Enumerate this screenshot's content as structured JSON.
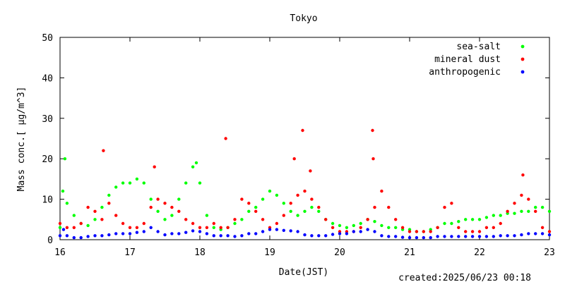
{
  "chart_data": {
    "type": "scatter",
    "title": "Tokyo",
    "xlabel": "Date(JST)",
    "ylabel": "Mass conc.[ μg/m^3]",
    "xlim": [
      16,
      23
    ],
    "ylim": [
      0,
      50
    ],
    "x_ticks": [
      "16",
      "17",
      "18",
      "19",
      "20",
      "21",
      "22",
      "23"
    ],
    "y_ticks": [
      "0",
      "10",
      "20",
      "30",
      "40",
      "50"
    ],
    "legend_position": "top-right",
    "grid": false,
    "series": [
      {
        "name": "sea-salt",
        "color": "#00ff00",
        "x": [
          16.0,
          16.04,
          16.07,
          16.1,
          16.2,
          16.3,
          16.4,
          16.5,
          16.6,
          16.7,
          16.8,
          16.9,
          17.0,
          17.1,
          17.2,
          17.3,
          17.4,
          17.5,
          17.6,
          17.7,
          17.8,
          17.9,
          17.95,
          18.0,
          18.1,
          18.2,
          18.3,
          18.4,
          18.5,
          18.6,
          18.7,
          18.8,
          18.9,
          19.0,
          19.1,
          19.2,
          19.3,
          19.4,
          19.5,
          19.6,
          19.7,
          19.8,
          19.9,
          20.0,
          20.1,
          20.2,
          20.3,
          20.4,
          20.5,
          20.6,
          20.7,
          20.8,
          20.9,
          21.0,
          21.1,
          21.2,
          21.3,
          21.4,
          21.5,
          21.6,
          21.7,
          21.8,
          21.9,
          22.0,
          22.1,
          22.2,
          22.3,
          22.4,
          22.5,
          22.6,
          22.7,
          22.8,
          22.9,
          23.0
        ],
        "y": [
          3,
          12,
          20,
          9,
          6,
          4,
          3.5,
          5,
          8,
          11,
          13,
          14,
          14,
          15,
          14,
          10,
          7,
          5,
          6,
          10,
          14,
          18,
          19,
          14,
          6,
          3,
          2.5,
          3,
          4,
          5,
          7,
          8,
          10,
          12,
          11,
          9,
          7,
          6,
          7,
          8,
          7,
          5,
          4,
          3.5,
          3,
          3.5,
          4,
          5,
          4.5,
          3.5,
          3,
          3,
          2.5,
          2.5,
          2,
          2,
          2.5,
          3,
          4,
          4,
          4.5,
          5,
          5,
          5,
          5.5,
          6,
          6,
          6.5,
          6.5,
          7,
          7,
          8,
          8,
          7
        ]
      },
      {
        "name": "mineral dust",
        "color": "#ff0000",
        "x": [
          16.0,
          16.1,
          16.2,
          16.3,
          16.4,
          16.5,
          16.6,
          16.62,
          16.7,
          16.8,
          16.9,
          17.0,
          17.1,
          17.2,
          17.3,
          17.35,
          17.4,
          17.5,
          17.6,
          17.7,
          17.8,
          17.9,
          18.0,
          18.1,
          18.2,
          18.3,
          18.37,
          18.4,
          18.5,
          18.6,
          18.7,
          18.8,
          18.9,
          19.0,
          19.1,
          19.2,
          19.3,
          19.35,
          19.4,
          19.47,
          19.5,
          19.58,
          19.6,
          19.7,
          19.8,
          19.9,
          20.0,
          20.1,
          20.2,
          20.3,
          20.4,
          20.47,
          20.48,
          20.5,
          20.6,
          20.7,
          20.8,
          20.9,
          21.0,
          21.1,
          21.2,
          21.3,
          21.4,
          21.5,
          21.6,
          21.7,
          21.8,
          21.9,
          22.0,
          22.1,
          22.2,
          22.3,
          22.4,
          22.5,
          22.6,
          22.62,
          22.7,
          22.8,
          22.9,
          23.0
        ],
        "y": [
          4,
          3,
          3,
          4,
          8,
          7,
          5,
          22,
          9,
          6,
          4,
          3,
          3,
          4,
          8,
          18,
          10,
          9,
          8,
          7,
          5,
          4,
          3,
          3,
          4,
          3,
          25,
          3,
          5,
          10,
          9,
          7,
          5,
          3,
          4,
          6,
          9,
          20,
          11,
          27,
          12,
          17,
          10,
          8,
          5,
          3,
          2,
          2,
          2,
          3,
          5,
          27,
          20,
          8,
          12,
          8,
          5,
          3,
          2,
          2,
          2,
          2,
          3,
          8,
          9,
          3,
          2,
          2,
          2,
          3,
          3,
          4,
          7,
          9,
          11,
          16,
          10,
          7,
          3,
          2
        ]
      },
      {
        "name": "anthropogenic",
        "color": "#0000ff",
        "x": [
          16.0,
          16.05,
          16.1,
          16.2,
          16.3,
          16.4,
          16.5,
          16.6,
          16.7,
          16.8,
          16.9,
          17.0,
          17.1,
          17.2,
          17.3,
          17.4,
          17.5,
          17.6,
          17.7,
          17.8,
          17.9,
          18.0,
          18.1,
          18.2,
          18.3,
          18.4,
          18.5,
          18.6,
          18.7,
          18.8,
          18.9,
          19.0,
          19.1,
          19.2,
          19.3,
          19.4,
          19.5,
          19.6,
          19.7,
          19.8,
          19.9,
          20.0,
          20.1,
          20.2,
          20.3,
          20.4,
          20.5,
          20.6,
          20.7,
          20.8,
          20.9,
          21.0,
          21.1,
          21.2,
          21.3,
          21.4,
          21.5,
          21.6,
          21.7,
          21.8,
          21.9,
          22.0,
          22.1,
          22.2,
          22.3,
          22.4,
          22.5,
          22.6,
          22.7,
          22.8,
          22.9,
          23.0
        ],
        "y": [
          1,
          2.5,
          1,
          0.5,
          0.5,
          0.8,
          1,
          1,
          1.2,
          1.5,
          1.5,
          1.5,
          1.8,
          2,
          3,
          2,
          1.2,
          1.5,
          1.5,
          1.8,
          2.2,
          2,
          1.5,
          1,
          1,
          1,
          0.8,
          1,
          1.5,
          1.5,
          2,
          2.5,
          2.5,
          2.3,
          2.2,
          2,
          1.2,
          1,
          1,
          1,
          1.3,
          1.5,
          1.5,
          2,
          2,
          2.5,
          2,
          1,
          0.8,
          0.8,
          0.6,
          0.5,
          0.5,
          0.5,
          0.5,
          0.8,
          0.8,
          0.8,
          0.8,
          0.8,
          0.8,
          0.8,
          0.8,
          0.8,
          1,
          1,
          1,
          1.2,
          1.5,
          1.5,
          1.5,
          1.2
        ]
      }
    ],
    "footer": "created:2025/06/23 00:18"
  }
}
